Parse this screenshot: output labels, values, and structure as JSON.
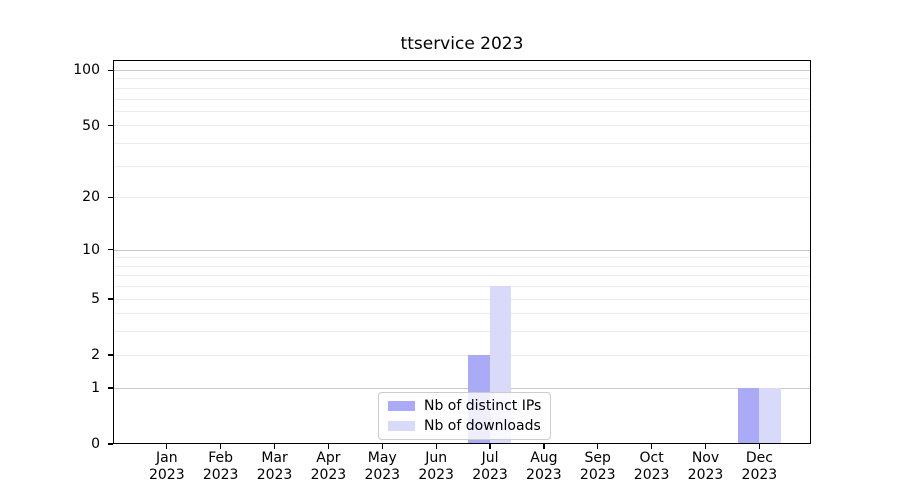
{
  "title": "ttservice 2023",
  "colors": {
    "distinct_ips_bar": "#aaaaf7",
    "downloads_bar": "#d9d9f9",
    "grid_major": "#c8c8c8",
    "grid_minor": "#ececec",
    "spine": "#000000",
    "text": "#000000",
    "legend_border": "#cccccc"
  },
  "chart_data": {
    "type": "bar",
    "title": "ttservice 2023",
    "categories": [
      "Jan 2023",
      "Feb 2023",
      "Mar 2023",
      "Apr 2023",
      "May 2023",
      "Jun 2023",
      "Jul 2023",
      "Aug 2023",
      "Sep 2023",
      "Oct 2023",
      "Nov 2023",
      "Dec 2023"
    ],
    "series": [
      {
        "name": "Nb of distinct IPs",
        "color": "#aaaaf7",
        "values": [
          0,
          0,
          0,
          0,
          0,
          0,
          2,
          0,
          0,
          0,
          0,
          1
        ]
      },
      {
        "name": "Nb of downloads",
        "color": "#d9d9f9",
        "values": [
          0,
          0,
          0,
          0,
          0,
          0,
          6,
          0,
          0,
          0,
          0,
          1
        ]
      }
    ],
    "xlabel": "",
    "ylabel": "",
    "yscale": "log1p",
    "ylim": [
      0,
      113
    ],
    "yticks": [
      0,
      1,
      2,
      5,
      10,
      20,
      50,
      100
    ],
    "major_gridlines": [
      1,
      10,
      100
    ],
    "minor_gridlines": [
      2,
      3,
      4,
      5,
      6,
      7,
      8,
      9,
      20,
      30,
      40,
      50,
      60,
      70,
      80,
      90
    ],
    "grid": true,
    "legend_position": "lower center"
  }
}
